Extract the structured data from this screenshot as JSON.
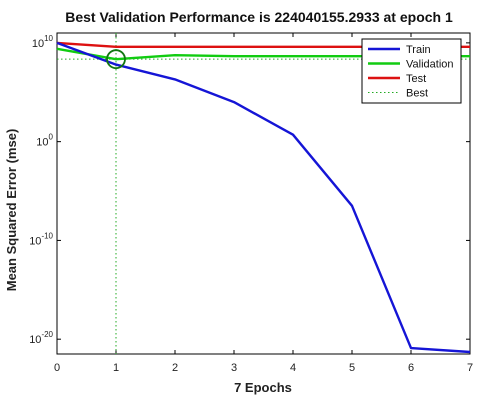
{
  "chart_data": {
    "type": "line",
    "title": "Best Validation Performance is 224040155.2933 at epoch 1",
    "xlabel": "7 Epochs",
    "ylabel": "Mean Squared Error  (mse)",
    "xlim": [
      0,
      7
    ],
    "ylim_log10": [
      -21.5,
      11
    ],
    "y_scale": "log",
    "x_ticks": [
      0,
      1,
      2,
      3,
      4,
      5,
      6,
      7
    ],
    "y_ticks": [
      {
        "exp": 10,
        "base": "10",
        "sup": "10"
      },
      {
        "exp": 0,
        "base": "10",
        "sup": "0"
      },
      {
        "exp": -10,
        "base": "10",
        "sup": "-10"
      },
      {
        "exp": -20,
        "base": "10",
        "sup": "-20"
      }
    ],
    "x": [
      0,
      1,
      2,
      3,
      4,
      5,
      6,
      7
    ],
    "series": [
      {
        "name": "Train",
        "color": "#1515d6",
        "style": "solid",
        "log10_values": [
          10.0,
          7.8,
          6.3,
          4.0,
          0.7,
          -6.5,
          -20.9,
          -21.3
        ]
      },
      {
        "name": "Validation",
        "color": "#11cc11",
        "style": "solid",
        "log10_values": [
          9.4,
          8.35,
          8.75,
          8.65,
          8.65,
          8.65,
          8.65,
          8.65
        ]
      },
      {
        "name": "Test",
        "color": "#dd1111",
        "style": "solid",
        "log10_values": [
          10.0,
          9.6,
          9.6,
          9.6,
          9.6,
          9.6,
          9.6,
          9.6
        ]
      },
      {
        "name": "Best",
        "color": "#22aa22",
        "style": "dotted"
      }
    ],
    "best": {
      "epoch": 1,
      "log10_value": 8.35,
      "marker_color": "#117711"
    },
    "legend_position": "top-right",
    "grid": false
  }
}
